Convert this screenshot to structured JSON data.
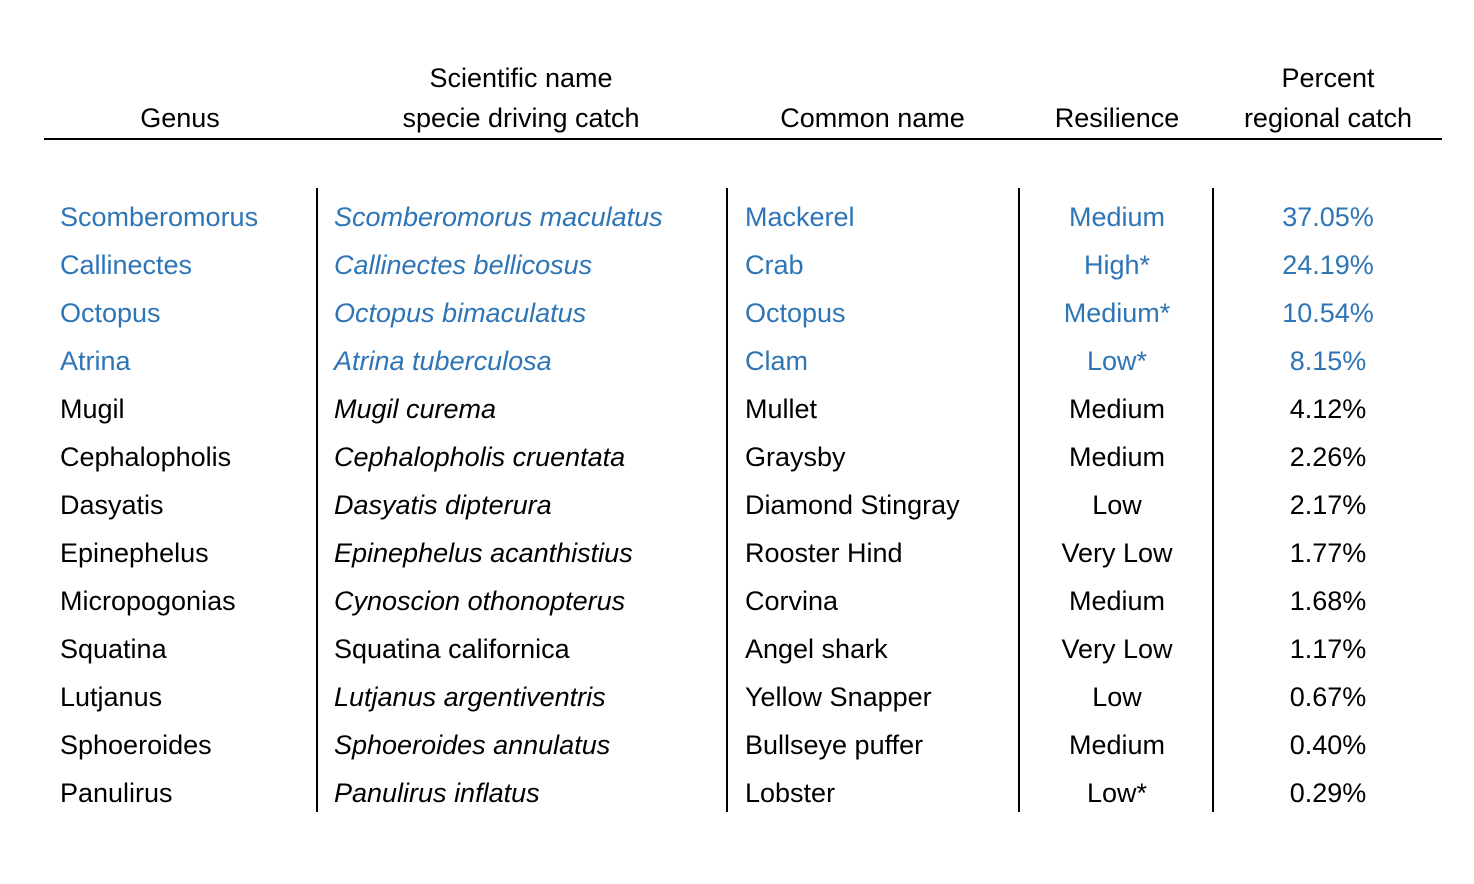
{
  "table": {
    "headers": {
      "genus": [
        "Genus"
      ],
      "scientific": [
        "Scientific name",
        "specie driving catch"
      ],
      "common": [
        "Common name"
      ],
      "resilience": [
        "Resilience"
      ],
      "percent": [
        "Percent",
        "regional catch"
      ]
    },
    "highlight_color": "#2e75b6",
    "rows": [
      {
        "genus": "Scomberomorus",
        "scientific": "Scomberomorus maculatus",
        "common": "Mackerel",
        "resilience": "Medium",
        "percent": "37.05%"
      },
      {
        "genus": "Callinectes",
        "scientific": "Callinectes bellicosus",
        "common": "Crab",
        "resilience": "High*",
        "percent": "24.19%"
      },
      {
        "genus": "Octopus",
        "scientific": "Octopus bimaculatus",
        "common": "Octopus",
        "resilience": "Medium*",
        "percent": "10.54%"
      },
      {
        "genus": "Atrina",
        "scientific": "Atrina tuberculosa",
        "common": "Clam",
        "resilience": "Low*",
        "percent": "8.15%"
      },
      {
        "genus": "Mugil",
        "scientific": "Mugil curema",
        "common": "Mullet",
        "resilience": "Medium",
        "percent": "4.12%"
      },
      {
        "genus": "Cephalopholis",
        "scientific": "Cephalopholis cruentata",
        "common": "Graysby",
        "resilience": "Medium",
        "percent": "2.26%"
      },
      {
        "genus": "Dasyatis",
        "scientific": "Dasyatis dipterura",
        "common": "Diamond Stingray",
        "resilience": "Low",
        "percent": "2.17%"
      },
      {
        "genus": "Epinephelus",
        "scientific": "Epinephelus acanthistius",
        "common": "Rooster Hind",
        "resilience": "Very Low",
        "percent": "1.77%"
      },
      {
        "genus": "Micropogonias",
        "scientific": "Cynoscion othonopterus",
        "common": "Corvina",
        "resilience": "Medium",
        "percent": "1.68%"
      },
      {
        "genus": "Squatina",
        "scientific": "Squatina californica",
        "common": "Angel shark",
        "resilience": "Very Low",
        "percent": "1.17%"
      },
      {
        "genus": "Lutjanus",
        "scientific": "Lutjanus argentiventris",
        "common": "Yellow Snapper",
        "resilience": "Low",
        "percent": "0.67%"
      },
      {
        "genus": "Sphoeroides",
        "scientific": "Sphoeroides annulatus",
        "common": "Bullseye puffer",
        "resilience": "Medium",
        "percent": "0.40%"
      },
      {
        "genus": "Panulirus",
        "scientific": "Panulirus inflatus",
        "common": "Lobster",
        "resilience": "Low*",
        "percent": "0.29%"
      }
    ]
  }
}
